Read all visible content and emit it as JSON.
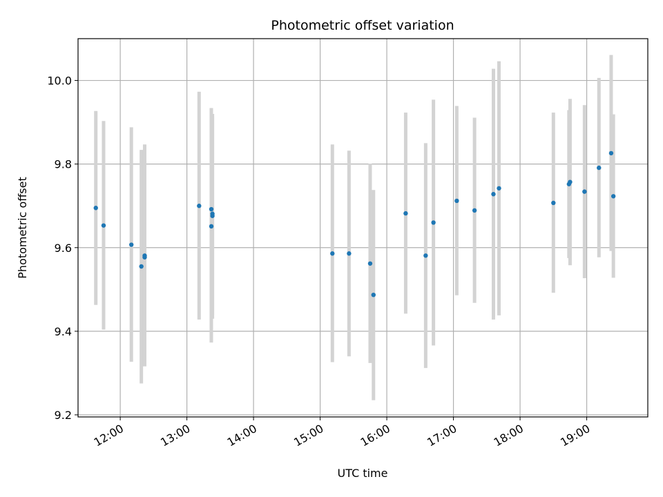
{
  "chart_data": {
    "type": "scatter",
    "title": "Photometric offset variation",
    "xlabel": "UTC time",
    "ylabel": "Photometric offset",
    "x_tick_labels": [
      "12:00",
      "13:00",
      "14:00",
      "15:00",
      "16:00",
      "17:00",
      "18:00",
      "19:00"
    ],
    "y_tick_labels": [
      "9.2",
      "9.4",
      "9.6",
      "9.8",
      "10.0"
    ],
    "xlim": [
      "11:22",
      "19:55"
    ],
    "ylim": [
      9.195,
      10.1
    ],
    "grid": true,
    "colors": {
      "points": "#1f77b4",
      "errorbars": "#d3d3d3",
      "grid": "#b0b0b0"
    },
    "points": [
      {
        "x": "11:38",
        "y": 9.695,
        "err_low": 9.463,
        "err_high": 9.927
      },
      {
        "x": "11:45",
        "y": 9.653,
        "err_low": 9.404,
        "err_high": 9.903
      },
      {
        "x": "12:10",
        "y": 9.607,
        "err_low": 9.327,
        "err_high": 9.888
      },
      {
        "x": "12:19",
        "y": 9.555,
        "err_low": 9.275,
        "err_high": 9.834
      },
      {
        "x": "12:22",
        "y": 9.581,
        "err_low": 9.316,
        "err_high": 9.847
      },
      {
        "x": "12:22",
        "y": 9.577,
        "err_low": 9.33,
        "err_high": 9.824
      },
      {
        "x": "13:11",
        "y": 9.7,
        "err_low": 9.428,
        "err_high": 9.973
      },
      {
        "x": "13:22",
        "y": 9.692,
        "err_low": 9.45,
        "err_high": 9.934
      },
      {
        "x": "13:22",
        "y": 9.651,
        "err_low": 9.373,
        "err_high": 9.929
      },
      {
        "x": "13:23",
        "y": 9.681,
        "err_low": 9.44,
        "err_high": 9.92
      },
      {
        "x": "13:23",
        "y": 9.676,
        "err_low": 9.43,
        "err_high": 9.913
      },
      {
        "x": "15:11",
        "y": 9.586,
        "err_low": 9.326,
        "err_high": 9.847
      },
      {
        "x": "15:26",
        "y": 9.586,
        "err_low": 9.34,
        "err_high": 9.832
      },
      {
        "x": "15:45",
        "y": 9.562,
        "err_low": 9.324,
        "err_high": 9.801
      },
      {
        "x": "15:48",
        "y": 9.487,
        "err_low": 9.235,
        "err_high": 9.738
      },
      {
        "x": "16:17",
        "y": 9.682,
        "err_low": 9.442,
        "err_high": 9.923
      },
      {
        "x": "16:35",
        "y": 9.581,
        "err_low": 9.312,
        "err_high": 9.85
      },
      {
        "x": "16:42",
        "y": 9.66,
        "err_low": 9.366,
        "err_high": 9.954
      },
      {
        "x": "17:03",
        "y": 9.712,
        "err_low": 9.486,
        "err_high": 9.939
      },
      {
        "x": "17:19",
        "y": 9.689,
        "err_low": 9.468,
        "err_high": 9.911
      },
      {
        "x": "17:36",
        "y": 9.728,
        "err_low": 9.428,
        "err_high": 10.028
      },
      {
        "x": "17:41",
        "y": 9.742,
        "err_low": 9.438,
        "err_high": 10.046
      },
      {
        "x": "18:30",
        "y": 9.707,
        "err_low": 9.492,
        "err_high": 9.923
      },
      {
        "x": "18:44",
        "y": 9.752,
        "err_low": 9.575,
        "err_high": 9.929
      },
      {
        "x": "18:45",
        "y": 9.757,
        "err_low": 9.558,
        "err_high": 9.956
      },
      {
        "x": "18:58",
        "y": 9.734,
        "err_low": 9.527,
        "err_high": 9.941
      },
      {
        "x": "19:11",
        "y": 9.791,
        "err_low": 9.577,
        "err_high": 10.006
      },
      {
        "x": "19:22",
        "y": 9.826,
        "err_low": 9.592,
        "err_high": 10.061
      },
      {
        "x": "19:24",
        "y": 9.723,
        "err_low": 9.528,
        "err_high": 9.919
      }
    ]
  }
}
